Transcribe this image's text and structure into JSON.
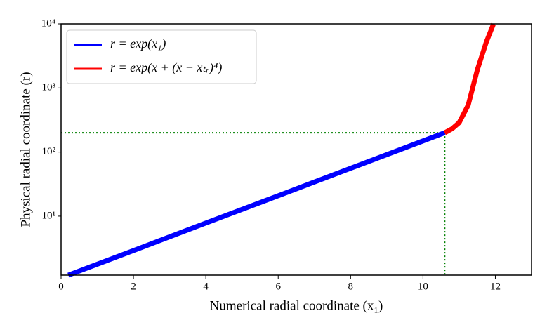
{
  "chart_data": {
    "type": "line",
    "xlabel": "Numerical radial coordinate (x₁)",
    "ylabel": "Physical radial coordinate (r)",
    "xlim": [
      0,
      13
    ],
    "xticks": [
      0,
      2,
      4,
      6,
      8,
      10,
      12
    ],
    "ylim": [
      1.2,
      10000
    ],
    "yscale": "log",
    "yticks": [
      {
        "value": 10,
        "label": "10¹"
      },
      {
        "value": 100,
        "label": "10²"
      },
      {
        "value": 1000,
        "label": "10³"
      },
      {
        "value": 10000,
        "label": "10⁴"
      }
    ],
    "legend": "upper left",
    "series": [
      {
        "name": "r = exp(x₁)",
        "color": "#0000ff",
        "x": [
          0.2,
          2,
          4,
          6,
          8,
          10,
          10.6
        ],
        "values": [
          1.2,
          2.9,
          7.8,
          20.8,
          55.8,
          148.9,
          200
        ]
      },
      {
        "name": "r = exp(x + (x − xₜᵣ)⁴)",
        "color": "#ff0000",
        "x": [
          10.6,
          10.8,
          11,
          11.25,
          11.5,
          11.75,
          11.95
        ],
        "values": [
          200,
          230,
          288,
          540,
          1900,
          5200,
          10000
        ]
      }
    ],
    "reference": {
      "x": 10.6,
      "y": 200,
      "color": "#008000"
    }
  }
}
